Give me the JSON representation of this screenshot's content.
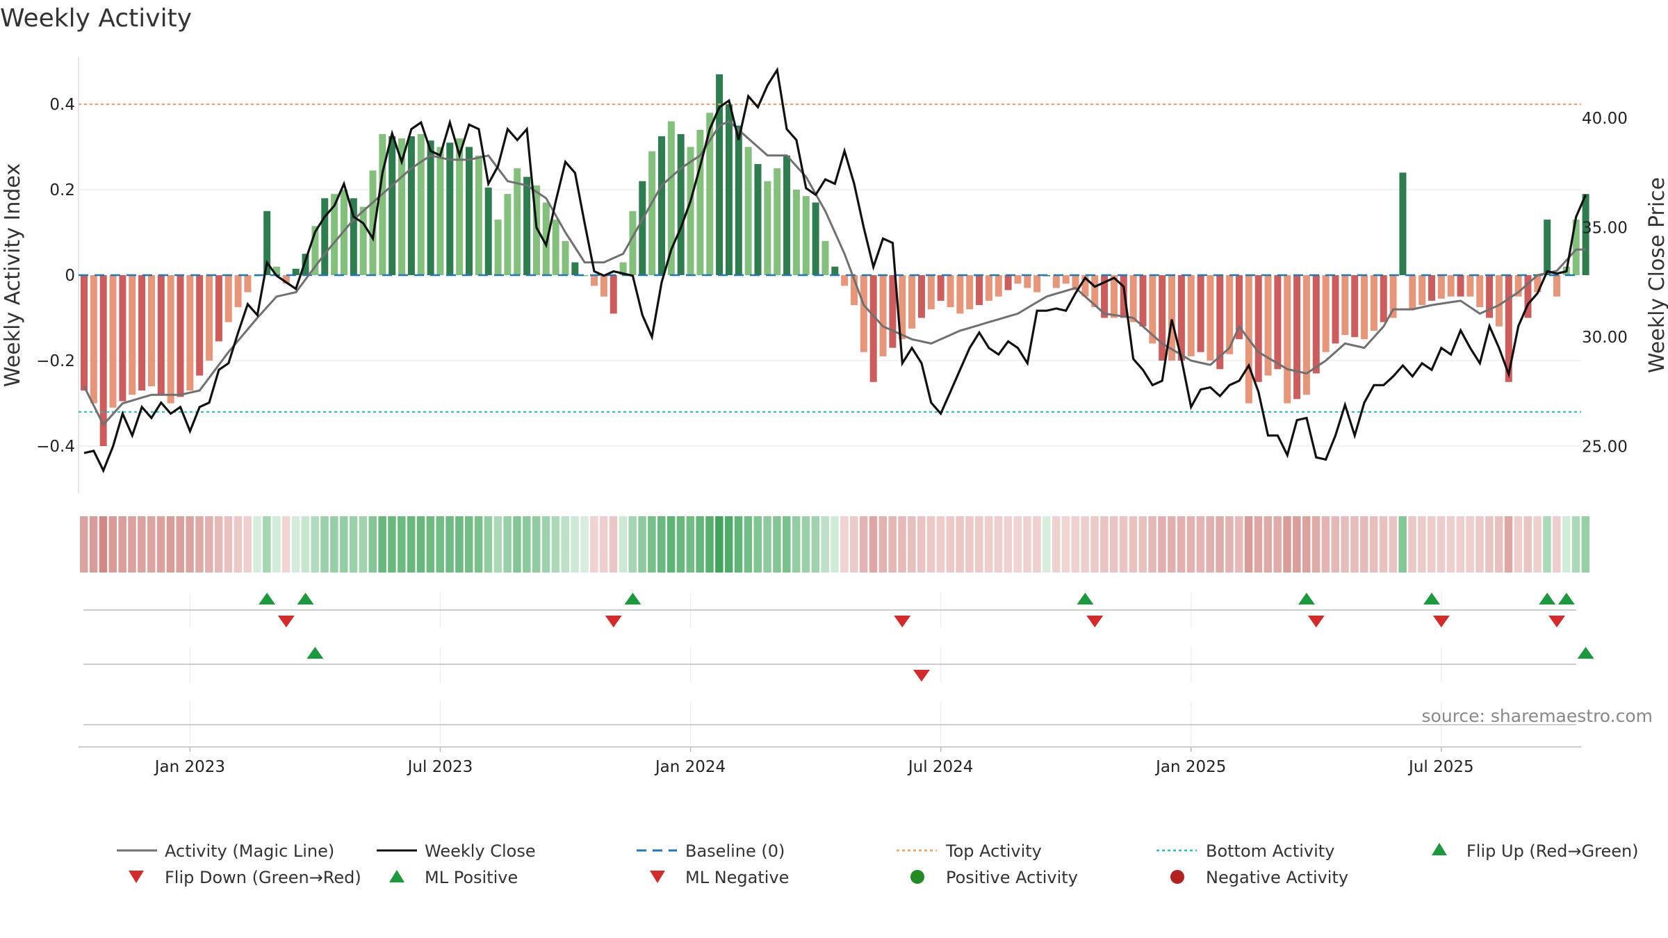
{
  "title": "Weekly Activity",
  "chart_data": {
    "type": "bar",
    "title": "Weekly Activity",
    "ylabel_left": "Weekly Activity Index",
    "ylabel_right": "Weekly Close Price",
    "ylim_left": [
      -0.5,
      0.5
    ],
    "ylim_right": [
      22.0,
      43.5
    ],
    "left_ticks": [
      {
        "v": 0.4,
        "label": "0.4"
      },
      {
        "v": 0.2,
        "label": "0.2"
      },
      {
        "v": 0,
        "label": "0"
      },
      {
        "v": -0.2,
        "label": "−0.2"
      },
      {
        "v": -0.4,
        "label": "−0.4"
      }
    ],
    "right_ticks": [
      {
        "v": 40,
        "label": "40.00"
      },
      {
        "v": 35,
        "label": "35.00"
      },
      {
        "v": 30,
        "label": "30.00"
      },
      {
        "v": 25,
        "label": "25.00"
      }
    ],
    "x_week_start": "2022-10-17",
    "x_ticks": [
      {
        "week": 11,
        "label": "Jan 2023"
      },
      {
        "week": 37,
        "label": "Jul 2023"
      },
      {
        "week": 63,
        "label": "Jan 2024"
      },
      {
        "week": 89,
        "label": "Jul 2024"
      },
      {
        "week": 115,
        "label": "Jan 2025"
      },
      {
        "week": 141,
        "label": "Jul 2025"
      }
    ],
    "top_activity": 0.4,
    "bottom_activity": -0.32,
    "activity_keys": [
      [
        0,
        -0.27
      ],
      [
        1,
        -0.3
      ],
      [
        2,
        -0.4
      ],
      [
        3,
        -0.31
      ],
      [
        5,
        -0.28
      ],
      [
        7,
        -0.26
      ],
      [
        9,
        -0.3
      ],
      [
        11,
        -0.27
      ],
      [
        13,
        -0.2
      ],
      [
        15,
        -0.11
      ],
      [
        17,
        -0.04
      ],
      [
        18,
        0.0
      ],
      [
        19,
        0.15
      ],
      [
        20,
        0.02
      ],
      [
        21,
        -0.02
      ],
      [
        23,
        0.05
      ],
      [
        25,
        0.18
      ],
      [
        27,
        0.2
      ],
      [
        29,
        0.16
      ],
      [
        31,
        0.33
      ],
      [
        33,
        0.32
      ],
      [
        35,
        0.33
      ],
      [
        37,
        0.3
      ],
      [
        39,
        0.32
      ],
      [
        41,
        0.28
      ],
      [
        43,
        0.13
      ],
      [
        45,
        0.25
      ],
      [
        47,
        0.21
      ],
      [
        49,
        0.13
      ],
      [
        51,
        0.03
      ],
      [
        52,
        0.0
      ],
      [
        54,
        -0.05
      ],
      [
        55,
        -0.09
      ],
      [
        57,
        0.15
      ],
      [
        59,
        0.29
      ],
      [
        61,
        0.36
      ],
      [
        63,
        0.3
      ],
      [
        65,
        0.38
      ],
      [
        66,
        0.47
      ],
      [
        67,
        0.4
      ],
      [
        69,
        0.3
      ],
      [
        71,
        0.22
      ],
      [
        73,
        0.28
      ],
      [
        74,
        0.2
      ],
      [
        76,
        0.17
      ],
      [
        77,
        0.08
      ],
      [
        78,
        0.02
      ],
      [
        80,
        -0.07
      ],
      [
        81,
        -0.18
      ],
      [
        82,
        -0.25
      ],
      [
        83,
        -0.19
      ],
      [
        85,
        -0.15
      ],
      [
        87,
        -0.1
      ],
      [
        89,
        -0.06
      ],
      [
        91,
        -0.09
      ],
      [
        93,
        -0.07
      ],
      [
        95,
        -0.05
      ],
      [
        97,
        -0.02
      ],
      [
        99,
        -0.04
      ],
      [
        100,
        0.0
      ],
      [
        101,
        -0.03
      ],
      [
        102,
        -0.02
      ],
      [
        104,
        -0.05
      ],
      [
        106,
        -0.1
      ],
      [
        108,
        -0.1
      ],
      [
        110,
        -0.12
      ],
      [
        112,
        -0.2
      ],
      [
        114,
        -0.2
      ],
      [
        116,
        -0.18
      ],
      [
        118,
        -0.22
      ],
      [
        120,
        -0.15
      ],
      [
        121,
        -0.3
      ],
      [
        122,
        -0.25
      ],
      [
        124,
        -0.22
      ],
      [
        125,
        -0.3
      ],
      [
        127,
        -0.28
      ],
      [
        129,
        -0.18
      ],
      [
        131,
        -0.14
      ],
      [
        133,
        -0.15
      ],
      [
        135,
        -0.11
      ],
      [
        136,
        -0.1
      ],
      [
        137,
        0.24
      ],
      [
        138,
        -0.08
      ],
      [
        140,
        -0.06
      ],
      [
        142,
        -0.05
      ],
      [
        144,
        -0.05
      ],
      [
        146,
        -0.1
      ],
      [
        147,
        -0.12
      ],
      [
        148,
        -0.25
      ],
      [
        149,
        -0.05
      ],
      [
        150,
        -0.1
      ],
      [
        151,
        -0.04
      ],
      [
        152,
        0.13
      ],
      [
        153,
        -0.05
      ],
      [
        154,
        0.02
      ],
      [
        155,
        0.13
      ],
      [
        156,
        0.19
      ]
    ],
    "ma_keys": [
      [
        0,
        -0.26
      ],
      [
        2,
        -0.35
      ],
      [
        4,
        -0.3
      ],
      [
        7,
        -0.28
      ],
      [
        10,
        -0.28
      ],
      [
        12,
        -0.27
      ],
      [
        15,
        -0.18
      ],
      [
        18,
        -0.1
      ],
      [
        20,
        -0.05
      ],
      [
        22,
        -0.04
      ],
      [
        25,
        0.05
      ],
      [
        28,
        0.13
      ],
      [
        31,
        0.19
      ],
      [
        34,
        0.25
      ],
      [
        36,
        0.28
      ],
      [
        38,
        0.27
      ],
      [
        40,
        0.27
      ],
      [
        42,
        0.28
      ],
      [
        44,
        0.22
      ],
      [
        46,
        0.21
      ],
      [
        48,
        0.18
      ],
      [
        50,
        0.1
      ],
      [
        52,
        0.03
      ],
      [
        54,
        0.03
      ],
      [
        56,
        0.05
      ],
      [
        58,
        0.13
      ],
      [
        60,
        0.21
      ],
      [
        62,
        0.25
      ],
      [
        64,
        0.28
      ],
      [
        66,
        0.35
      ],
      [
        67,
        0.36
      ],
      [
        69,
        0.32
      ],
      [
        71,
        0.28
      ],
      [
        73,
        0.28
      ],
      [
        75,
        0.23
      ],
      [
        77,
        0.15
      ],
      [
        79,
        0.05
      ],
      [
        81,
        -0.07
      ],
      [
        83,
        -0.12
      ],
      [
        86,
        -0.15
      ],
      [
        88,
        -0.16
      ],
      [
        91,
        -0.13
      ],
      [
        94,
        -0.11
      ],
      [
        97,
        -0.09
      ],
      [
        100,
        -0.05
      ],
      [
        103,
        -0.03
      ],
      [
        106,
        -0.09
      ],
      [
        109,
        -0.1
      ],
      [
        112,
        -0.16
      ],
      [
        115,
        -0.2
      ],
      [
        117,
        -0.21
      ],
      [
        119,
        -0.17
      ],
      [
        120,
        -0.12
      ],
      [
        122,
        -0.18
      ],
      [
        125,
        -0.22
      ],
      [
        127,
        -0.23
      ],
      [
        129,
        -0.2
      ],
      [
        131,
        -0.16
      ],
      [
        133,
        -0.17
      ],
      [
        135,
        -0.12
      ],
      [
        136,
        -0.08
      ],
      [
        138,
        -0.08
      ],
      [
        140,
        -0.07
      ],
      [
        143,
        -0.06
      ],
      [
        145,
        -0.09
      ],
      [
        147,
        -0.07
      ],
      [
        149,
        -0.04
      ],
      [
        151,
        0.0
      ],
      [
        153,
        0.01
      ],
      [
        155,
        0.06
      ]
    ],
    "close_keys": [
      [
        0,
        24.7
      ],
      [
        1,
        24.8
      ],
      [
        2,
        23.9
      ],
      [
        3,
        25.0
      ],
      [
        4,
        26.5
      ],
      [
        5,
        25.5
      ],
      [
        6,
        26.8
      ],
      [
        7,
        26.3
      ],
      [
        8,
        27.0
      ],
      [
        9,
        26.5
      ],
      [
        10,
        26.8
      ],
      [
        11,
        25.7
      ],
      [
        12,
        26.8
      ],
      [
        13,
        27.0
      ],
      [
        14,
        28.5
      ],
      [
        15,
        28.8
      ],
      [
        16,
        30.2
      ],
      [
        17,
        31.5
      ],
      [
        18,
        31.0
      ],
      [
        19,
        33.4
      ],
      [
        20,
        32.8
      ],
      [
        21,
        32.5
      ],
      [
        22,
        32.2
      ],
      [
        23,
        33.5
      ],
      [
        24,
        34.8
      ],
      [
        25,
        35.5
      ],
      [
        26,
        36.0
      ],
      [
        27,
        37.0
      ],
      [
        28,
        35.5
      ],
      [
        29,
        35.2
      ],
      [
        30,
        34.5
      ],
      [
        31,
        37.5
      ],
      [
        32,
        39.3
      ],
      [
        33,
        38.0
      ],
      [
        34,
        39.5
      ],
      [
        35,
        39.8
      ],
      [
        36,
        38.5
      ],
      [
        37,
        38.3
      ],
      [
        38,
        39.8
      ],
      [
        39,
        38.3
      ],
      [
        40,
        39.7
      ],
      [
        41,
        39.5
      ],
      [
        42,
        37.0
      ],
      [
        43,
        37.8
      ],
      [
        44,
        39.5
      ],
      [
        45,
        39.0
      ],
      [
        46,
        39.5
      ],
      [
        47,
        35.0
      ],
      [
        48,
        34.2
      ],
      [
        49,
        36.2
      ],
      [
        50,
        38.0
      ],
      [
        51,
        37.5
      ],
      [
        52,
        35.2
      ],
      [
        53,
        33.0
      ],
      [
        54,
        32.8
      ],
      [
        55,
        33.0
      ],
      [
        56,
        32.9
      ],
      [
        57,
        32.8
      ],
      [
        58,
        31.0
      ],
      [
        59,
        30.0
      ],
      [
        60,
        32.5
      ],
      [
        61,
        34.0
      ],
      [
        62,
        35.0
      ],
      [
        63,
        36.2
      ],
      [
        64,
        37.8
      ],
      [
        65,
        39.5
      ],
      [
        66,
        40.5
      ],
      [
        67,
        40.8
      ],
      [
        68,
        39.0
      ],
      [
        69,
        41.0
      ],
      [
        70,
        40.5
      ],
      [
        71,
        41.5
      ],
      [
        72,
        42.2
      ],
      [
        73,
        39.5
      ],
      [
        74,
        39.0
      ],
      [
        75,
        36.8
      ],
      [
        76,
        36.5
      ],
      [
        77,
        37.2
      ],
      [
        78,
        37.0
      ],
      [
        79,
        38.5
      ],
      [
        80,
        37.0
      ],
      [
        81,
        35.0
      ],
      [
        82,
        33.2
      ],
      [
        83,
        34.5
      ],
      [
        84,
        34.3
      ],
      [
        85,
        28.8
      ],
      [
        86,
        29.5
      ],
      [
        87,
        28.8
      ],
      [
        88,
        27.0
      ],
      [
        89,
        26.5
      ],
      [
        90,
        27.5
      ],
      [
        91,
        28.5
      ],
      [
        92,
        29.5
      ],
      [
        93,
        30.2
      ],
      [
        94,
        29.5
      ],
      [
        95,
        29.2
      ],
      [
        96,
        29.8
      ],
      [
        97,
        29.5
      ],
      [
        98,
        28.8
      ],
      [
        99,
        31.2
      ],
      [
        100,
        31.2
      ],
      [
        101,
        31.3
      ],
      [
        102,
        31.2
      ],
      [
        103,
        32.0
      ],
      [
        104,
        32.7
      ],
      [
        105,
        32.3
      ],
      [
        106,
        32.5
      ],
      [
        107,
        32.7
      ],
      [
        108,
        32.3
      ],
      [
        109,
        29.0
      ],
      [
        110,
        28.5
      ],
      [
        111,
        27.8
      ],
      [
        112,
        28.0
      ],
      [
        113,
        30.8
      ],
      [
        114,
        29.0
      ],
      [
        115,
        26.8
      ],
      [
        116,
        27.6
      ],
      [
        117,
        27.7
      ],
      [
        118,
        27.3
      ],
      [
        119,
        27.8
      ],
      [
        120,
        28.0
      ],
      [
        121,
        28.7
      ],
      [
        122,
        27.5
      ],
      [
        123,
        25.5
      ],
      [
        124,
        25.5
      ],
      [
        125,
        24.6
      ],
      [
        126,
        26.2
      ],
      [
        127,
        26.3
      ],
      [
        128,
        24.5
      ],
      [
        129,
        24.4
      ],
      [
        130,
        25.5
      ],
      [
        131,
        26.9
      ],
      [
        132,
        25.5
      ],
      [
        133,
        27.0
      ],
      [
        134,
        27.8
      ],
      [
        135,
        27.8
      ],
      [
        136,
        28.2
      ],
      [
        137,
        28.7
      ],
      [
        138,
        28.2
      ],
      [
        139,
        28.8
      ],
      [
        140,
        28.5
      ],
      [
        141,
        29.5
      ],
      [
        142,
        29.2
      ],
      [
        143,
        30.3
      ],
      [
        144,
        29.5
      ],
      [
        145,
        28.8
      ],
      [
        146,
        30.5
      ],
      [
        147,
        29.5
      ],
      [
        148,
        28.3
      ],
      [
        149,
        30.5
      ],
      [
        150,
        31.5
      ],
      [
        151,
        32.0
      ],
      [
        152,
        33.0
      ],
      [
        153,
        32.9
      ],
      [
        154,
        33.0
      ],
      [
        155,
        35.5
      ],
      [
        156,
        36.5
      ]
    ],
    "bright_bars": [
      0,
      2,
      4,
      6,
      8,
      10,
      12,
      14,
      19,
      22,
      23,
      25,
      28,
      32,
      34,
      36,
      38,
      40,
      42,
      46,
      51,
      55,
      58,
      60,
      62,
      66,
      67,
      68,
      70,
      73,
      76,
      78,
      82,
      84,
      87,
      89,
      93,
      96,
      100,
      106,
      108,
      110,
      112,
      114,
      116,
      118,
      120,
      122,
      124,
      126,
      128,
      130,
      132,
      135,
      137,
      140,
      143,
      146,
      148,
      150,
      152,
      156
    ],
    "flip_up": [
      19,
      23,
      57,
      104,
      127,
      140,
      152,
      154
    ],
    "flip_down": [
      21,
      55,
      85,
      105,
      128,
      141,
      153
    ],
    "ml_positive": [
      24,
      156
    ],
    "ml_negative": [
      87
    ],
    "positive_activity": [],
    "negative_activity": [],
    "colors": {
      "pos_strong": "#2e7d4f",
      "pos_light": "#82c07c",
      "neg_strong": "#cd5c5c",
      "neg_light": "#e8967a",
      "magic_line": "#707070",
      "close_line": "#111111",
      "baseline": "#1f77b4",
      "top_activity": "#f4a460",
      "bottom_activity": "#20c0c0",
      "flip_up": "#1a9a3c",
      "flip_down": "#d42a2a",
      "positive_dot": "#228b22",
      "negative_dot": "#b22222"
    },
    "source": "source: sharemaestro.com"
  },
  "legend": {
    "magic_line": "Activity (Magic Line)",
    "weekly_close": "Weekly Close",
    "baseline": "Baseline (0)",
    "top_activity": "Top Activity",
    "bottom_activity": "Bottom Activity",
    "flip_up": "Flip Up (Red→Green)",
    "flip_down": "Flip Down (Green→Red)",
    "ml_positive": "ML Positive",
    "ml_negative": "ML Negative",
    "positive_activity": "Positive Activity",
    "negative_activity": "Negative Activity"
  }
}
